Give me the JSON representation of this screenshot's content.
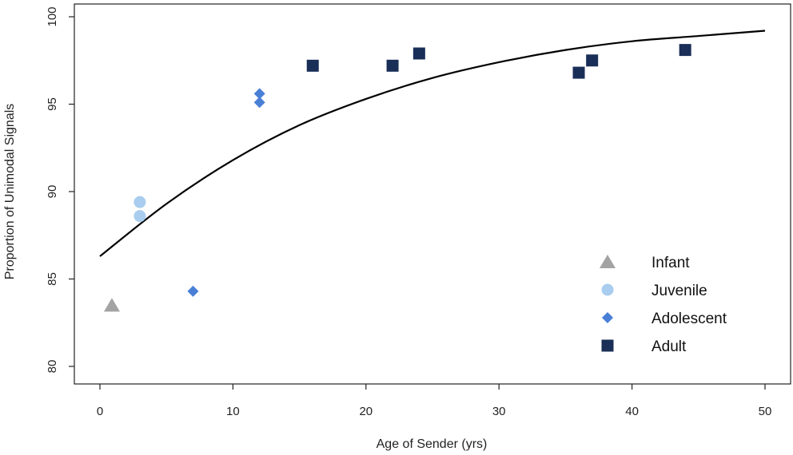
{
  "chart_data": {
    "type": "scatter",
    "xlabel": "Age of Sender (yrs)",
    "ylabel": "Proportion of Unimodal Signals",
    "xlim": [
      0,
      50
    ],
    "ylim": [
      80,
      100
    ],
    "x_ticks": [
      0,
      10,
      20,
      30,
      40,
      50
    ],
    "y_ticks": [
      80,
      85,
      90,
      95,
      100
    ],
    "grid": false,
    "legend_position": "bottom-right",
    "series": [
      {
        "name": "Infant",
        "marker": "triangle",
        "color": "#a3a3a3",
        "points": [
          [
            0.9,
            83.5
          ]
        ]
      },
      {
        "name": "Juvenile",
        "marker": "circle",
        "color": "#a9cdee",
        "points": [
          [
            3,
            89.4
          ],
          [
            3,
            88.6
          ]
        ]
      },
      {
        "name": "Adolescent",
        "marker": "diamond",
        "color": "#4a7fd6",
        "points": [
          [
            7,
            84.3
          ],
          [
            12,
            95.6
          ],
          [
            12,
            95.1
          ]
        ]
      },
      {
        "name": "Adult",
        "marker": "square",
        "color": "#1a2f57",
        "points": [
          [
            16,
            97.2
          ],
          [
            22,
            97.2
          ],
          [
            24,
            97.9
          ],
          [
            36,
            96.8
          ],
          [
            37,
            97.5
          ],
          [
            44,
            98.1
          ]
        ]
      }
    ],
    "fit_curve": {
      "type": "line",
      "color": "#000000",
      "points": [
        [
          0,
          86.3
        ],
        [
          5,
          89.3
        ],
        [
          10,
          91.8
        ],
        [
          15,
          93.8
        ],
        [
          20,
          95.3
        ],
        [
          25,
          96.5
        ],
        [
          30,
          97.4
        ],
        [
          35,
          98.1
        ],
        [
          40,
          98.6
        ],
        [
          45,
          98.9
        ],
        [
          50,
          99.2
        ]
      ]
    }
  }
}
